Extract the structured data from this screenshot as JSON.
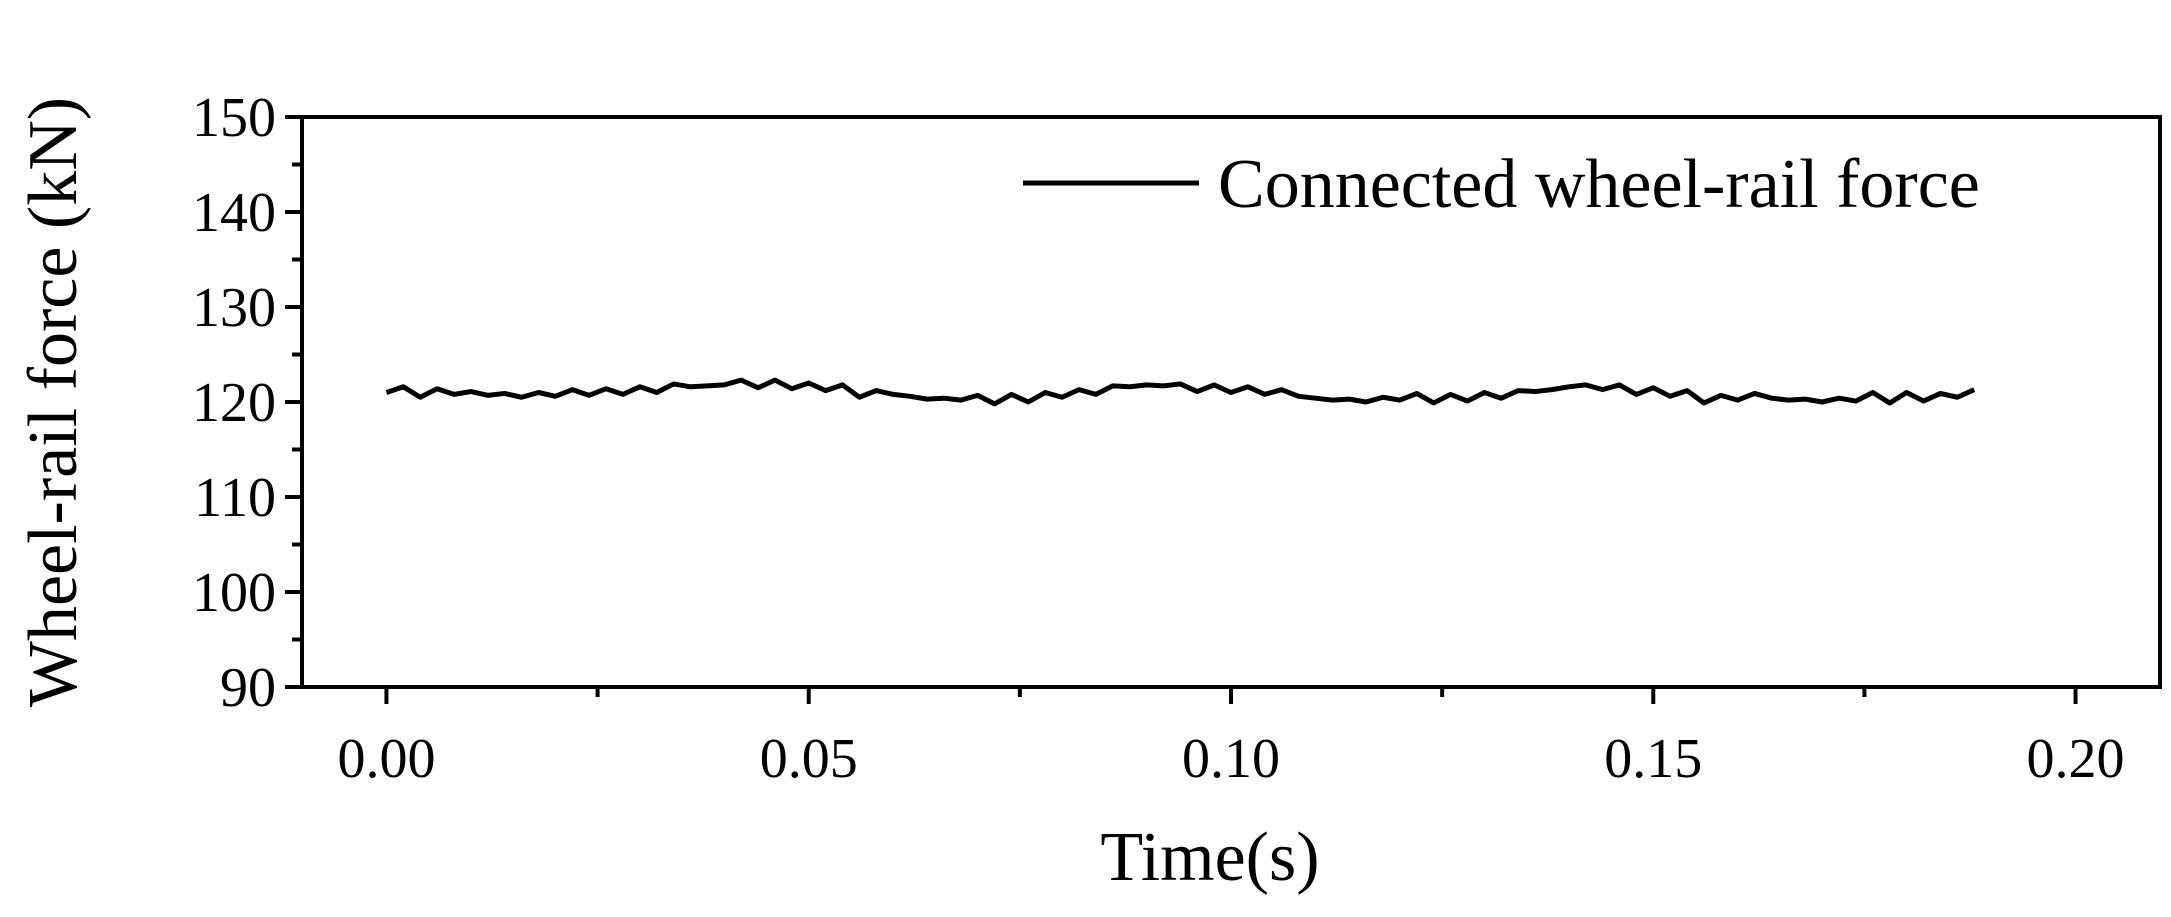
{
  "chart_data": {
    "type": "line",
    "x_label": "Time(s)",
    "y_label": "Wheel-rail force (kN)",
    "xlim": [
      -0.01,
      0.21
    ],
    "ylim": [
      90,
      150
    ],
    "xticks": [
      {
        "value": 0,
        "label": "0.00"
      },
      {
        "value": 0.05,
        "label": "0.05"
      },
      {
        "value": 0.1,
        "label": "0.10"
      },
      {
        "value": 0.15,
        "label": "0.15"
      },
      {
        "value": 0.2,
        "label": "0.20"
      }
    ],
    "xminorticks": [
      0.025,
      0.075,
      0.125,
      0.175
    ],
    "yticks": [
      90,
      100,
      110,
      120,
      130,
      140,
      150
    ],
    "yminorticks": [
      95,
      105,
      115,
      125,
      135,
      145
    ],
    "grid": false,
    "legend": "upper right",
    "x": [
      0,
      0.002,
      0.004,
      0.006,
      0.008,
      0.01,
      0.012,
      0.014,
      0.016,
      0.018,
      0.02,
      0.022,
      0.024,
      0.026,
      0.028,
      0.03,
      0.032,
      0.034,
      0.036,
      0.038,
      0.04,
      0.042,
      0.044,
      0.046,
      0.048,
      0.05,
      0.052,
      0.054,
      0.056,
      0.058,
      0.06,
      0.062,
      0.064,
      0.066,
      0.068,
      0.07,
      0.072,
      0.074,
      0.076,
      0.078,
      0.08,
      0.082,
      0.084,
      0.086,
      0.088,
      0.09,
      0.092,
      0.094,
      0.096,
      0.098,
      0.1,
      0.102,
      0.104,
      0.106,
      0.108,
      0.11,
      0.112,
      0.114,
      0.116,
      0.118,
      0.12,
      0.122,
      0.124,
      0.126,
      0.128,
      0.13,
      0.132,
      0.134,
      0.136,
      0.138,
      0.14,
      0.142,
      0.144,
      0.146,
      0.148,
      0.15,
      0.152,
      0.154,
      0.156,
      0.158,
      0.16,
      0.162,
      0.164,
      0.166,
      0.168,
      0.17,
      0.172,
      0.174,
      0.176,
      0.178,
      0.18,
      0.182,
      0.184,
      0.186,
      0.188
    ],
    "series": [
      {
        "name": "Connected wheel-rail force",
        "color": "#000000",
        "values": [
          121.0,
          121.6,
          120.5,
          121.4,
          120.8,
          121.1,
          120.7,
          120.9,
          120.5,
          121.0,
          120.6,
          121.3,
          120.7,
          121.4,
          120.8,
          121.6,
          121.0,
          121.9,
          121.6,
          121.7,
          121.8,
          122.3,
          121.5,
          122.3,
          121.4,
          122.0,
          121.2,
          121.8,
          120.5,
          121.2,
          120.8,
          120.6,
          120.3,
          120.4,
          120.2,
          120.7,
          119.8,
          120.8,
          120.0,
          121.0,
          120.5,
          121.3,
          120.8,
          121.7,
          121.6,
          121.8,
          121.7,
          121.9,
          121.1,
          121.8,
          121.0,
          121.6,
          120.8,
          121.3,
          120.6,
          120.4,
          120.2,
          120.3,
          120.0,
          120.5,
          120.2,
          120.9,
          119.9,
          120.8,
          120.1,
          121.0,
          120.4,
          121.2,
          121.1,
          121.3,
          121.6,
          121.8,
          121.3,
          121.8,
          120.8,
          121.5,
          120.6,
          121.2,
          119.9,
          120.7,
          120.2,
          120.9,
          120.4,
          120.2,
          120.3,
          120.0,
          120.4,
          120.1,
          121.0,
          119.9,
          121.0,
          120.1,
          120.9,
          120.5,
          121.3
        ]
      }
    ]
  }
}
